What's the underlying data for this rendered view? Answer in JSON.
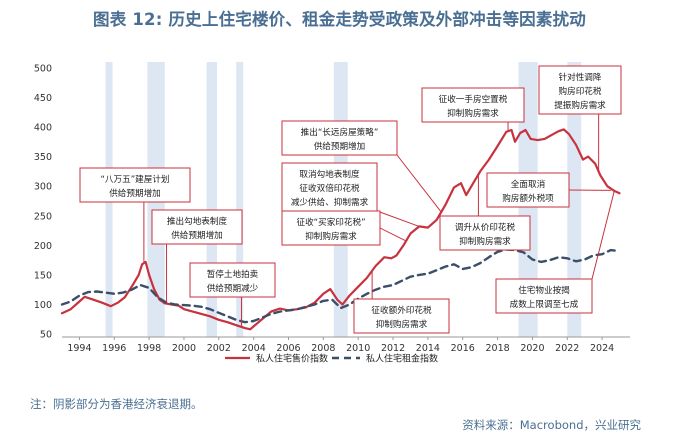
{
  "title": "图表 12: 历史上住宅楼价、租金走势受政策及外部冲击等因素扰动",
  "note": "注：阴影部分为香港经济衰退期。",
  "source": "资料来源：Macrobond，兴业研究",
  "colors": {
    "price": "#c8323e",
    "rent": "#3c4f69",
    "recession": "#dde7f3",
    "text_accent": "#4a6f93",
    "annotation_border": "#c8323e"
  },
  "chart_data": {
    "type": "line",
    "xlim": [
      1993.0,
      2025.6
    ],
    "ylim": [
      45,
      510
    ],
    "x_ticks": [
      1994,
      1996,
      1998,
      2000,
      2002,
      2004,
      2006,
      2008,
      2010,
      2012,
      2014,
      2016,
      2018,
      2020,
      2022,
      2024
    ],
    "y_ticks": [
      50,
      100,
      150,
      200,
      250,
      300,
      350,
      400,
      450,
      500
    ],
    "recession_periods": [
      [
        1995.5,
        1995.9
      ],
      [
        1997.9,
        1998.9
      ],
      [
        2001.3,
        2001.9
      ],
      [
        2003.0,
        2003.4
      ],
      [
        2008.6,
        2009.4
      ],
      [
        2019.2,
        2020.3
      ],
      [
        2022.0,
        2022.8
      ]
    ],
    "series": [
      {
        "name": "私人住宅售价指数",
        "style": "solid",
        "color": "#c8323e",
        "points": [
          [
            1993.0,
            85
          ],
          [
            1993.5,
            92
          ],
          [
            1994.0,
            105
          ],
          [
            1994.3,
            113
          ],
          [
            1994.8,
            108
          ],
          [
            1995.3,
            103
          ],
          [
            1995.8,
            97
          ],
          [
            1996.2,
            103
          ],
          [
            1996.6,
            112
          ],
          [
            1997.0,
            130
          ],
          [
            1997.4,
            150
          ],
          [
            1997.6,
            168
          ],
          [
            1997.8,
            172
          ],
          [
            1998.0,
            150
          ],
          [
            1998.3,
            125
          ],
          [
            1998.6,
            108
          ],
          [
            1998.9,
            102
          ],
          [
            1999.3,
            100
          ],
          [
            1999.7,
            98
          ],
          [
            2000.0,
            92
          ],
          [
            2000.5,
            88
          ],
          [
            2001.0,
            84
          ],
          [
            2001.5,
            80
          ],
          [
            2002.0,
            74
          ],
          [
            2002.5,
            70
          ],
          [
            2003.0,
            65
          ],
          [
            2003.5,
            60
          ],
          [
            2003.8,
            58
          ],
          [
            2004.2,
            68
          ],
          [
            2004.6,
            78
          ],
          [
            2005.0,
            88
          ],
          [
            2005.5,
            93
          ],
          [
            2006.0,
            90
          ],
          [
            2006.5,
            92
          ],
          [
            2007.0,
            95
          ],
          [
            2007.5,
            103
          ],
          [
            2008.0,
            118
          ],
          [
            2008.4,
            126
          ],
          [
            2008.8,
            108
          ],
          [
            2009.1,
            100
          ],
          [
            2009.5,
            115
          ],
          [
            2010.0,
            130
          ],
          [
            2010.5,
            145
          ],
          [
            2011.0,
            165
          ],
          [
            2011.5,
            180
          ],
          [
            2011.9,
            178
          ],
          [
            2012.2,
            183
          ],
          [
            2012.6,
            200
          ],
          [
            2013.0,
            220
          ],
          [
            2013.5,
            232
          ],
          [
            2014.0,
            230
          ],
          [
            2014.5,
            243
          ],
          [
            2015.0,
            268
          ],
          [
            2015.5,
            298
          ],
          [
            2015.9,
            305
          ],
          [
            2016.2,
            285
          ],
          [
            2016.6,
            305
          ],
          [
            2017.0,
            325
          ],
          [
            2017.5,
            345
          ],
          [
            2018.0,
            368
          ],
          [
            2018.5,
            392
          ],
          [
            2018.8,
            395
          ],
          [
            2019.0,
            375
          ],
          [
            2019.3,
            390
          ],
          [
            2019.6,
            395
          ],
          [
            2019.9,
            380
          ],
          [
            2020.3,
            378
          ],
          [
            2020.7,
            380
          ],
          [
            2021.0,
            385
          ],
          [
            2021.5,
            393
          ],
          [
            2021.8,
            396
          ],
          [
            2022.1,
            388
          ],
          [
            2022.5,
            370
          ],
          [
            2022.9,
            345
          ],
          [
            2023.2,
            350
          ],
          [
            2023.6,
            338
          ],
          [
            2023.9,
            318
          ],
          [
            2024.3,
            300
          ],
          [
            2024.7,
            292
          ],
          [
            2025.0,
            288
          ]
        ]
      },
      {
        "name": "私人住宅租金指数",
        "style": "dashed",
        "color": "#3c4f69",
        "points": [
          [
            1993.0,
            100
          ],
          [
            1993.5,
            105
          ],
          [
            1994.0,
            115
          ],
          [
            1994.5,
            121
          ],
          [
            1995.0,
            122
          ],
          [
            1995.5,
            120
          ],
          [
            1996.0,
            118
          ],
          [
            1996.5,
            120
          ],
          [
            1997.0,
            125
          ],
          [
            1997.5,
            133
          ],
          [
            1998.0,
            128
          ],
          [
            1998.5,
            112
          ],
          [
            1999.0,
            103
          ],
          [
            1999.5,
            100
          ],
          [
            2000.0,
            99
          ],
          [
            2000.5,
            98
          ],
          [
            2001.0,
            96
          ],
          [
            2001.5,
            92
          ],
          [
            2002.0,
            86
          ],
          [
            2002.5,
            80
          ],
          [
            2003.0,
            74
          ],
          [
            2003.5,
            70
          ],
          [
            2004.0,
            72
          ],
          [
            2004.5,
            78
          ],
          [
            2005.0,
            84
          ],
          [
            2005.5,
            88
          ],
          [
            2006.0,
            90
          ],
          [
            2006.5,
            92
          ],
          [
            2007.0,
            96
          ],
          [
            2007.5,
            100
          ],
          [
            2008.0,
            106
          ],
          [
            2008.5,
            108
          ],
          [
            2009.0,
            94
          ],
          [
            2009.5,
            100
          ],
          [
            2010.0,
            110
          ],
          [
            2010.5,
            118
          ],
          [
            2011.0,
            125
          ],
          [
            2011.5,
            130
          ],
          [
            2012.0,
            133
          ],
          [
            2012.5,
            140
          ],
          [
            2013.0,
            147
          ],
          [
            2013.5,
            150
          ],
          [
            2014.0,
            152
          ],
          [
            2014.5,
            158
          ],
          [
            2015.0,
            164
          ],
          [
            2015.5,
            168
          ],
          [
            2016.0,
            160
          ],
          [
            2016.5,
            163
          ],
          [
            2017.0,
            170
          ],
          [
            2017.5,
            180
          ],
          [
            2018.0,
            189
          ],
          [
            2018.5,
            193
          ],
          [
            2019.0,
            192
          ],
          [
            2019.5,
            188
          ],
          [
            2020.0,
            176
          ],
          [
            2020.5,
            172
          ],
          [
            2021.0,
            175
          ],
          [
            2021.5,
            180
          ],
          [
            2022.0,
            178
          ],
          [
            2022.5,
            173
          ],
          [
            2023.0,
            176
          ],
          [
            2023.5,
            183
          ],
          [
            2024.0,
            185
          ],
          [
            2024.5,
            192
          ],
          [
            2025.0,
            190
          ]
        ]
      }
    ],
    "annotations": [
      {
        "lines": [
          "“八万五”建屋计划",
          "供给预期增加"
        ],
        "target": [
          1997.7,
          172
        ]
      },
      {
        "lines": [
          "推出勾地表制度",
          "供给预期增加"
        ],
        "target": [
          1999.0,
          103
        ]
      },
      {
        "lines": [
          "暂停土地拍卖",
          "供给预期减少"
        ],
        "target": [
          2003.3,
          63
        ]
      },
      {
        "lines": [
          "推出“长远房屋策略”",
          "供给预期增加"
        ],
        "target": [
          2014.8,
          255
        ]
      },
      {
        "lines": [
          "取消勾地表制度",
          "征收双倍印花税",
          "减少供给、抑制需求"
        ],
        "target": [
          2013.5,
          232
        ]
      },
      {
        "lines": [
          "征收“买家印花税”",
          "抑制购房需求"
        ],
        "target": [
          2012.7,
          208
        ]
      },
      {
        "lines": [
          "征收额外印花税",
          "抑制购房需求"
        ],
        "target": [
          2010.8,
          155
        ]
      },
      {
        "lines": [
          "征收一手房空置税",
          "抑制购房需求"
        ],
        "target": [
          2018.6,
          394
        ]
      },
      {
        "lines": [
          "调升从价印花税",
          "抑制购房需求"
        ],
        "target": [
          2016.9,
          320
        ]
      },
      {
        "lines": [
          "针对性调降",
          "购房印花税",
          "提振购房需求"
        ],
        "target": [
          2023.8,
          325
        ]
      },
      {
        "lines": [
          "全面取消",
          "购房额外税项"
        ],
        "target": [
          2024.5,
          293
        ]
      },
      {
        "lines": [
          "住宅物业按揭",
          "成数上限调至七成"
        ],
        "target": [
          2024.7,
          292
        ]
      }
    ]
  }
}
